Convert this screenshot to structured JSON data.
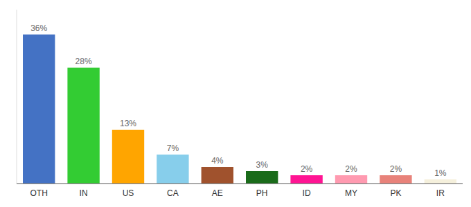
{
  "chart_data": {
    "type": "bar",
    "categories": [
      "OTH",
      "IN",
      "US",
      "CA",
      "AE",
      "PH",
      "ID",
      "MY",
      "PK",
      "IR"
    ],
    "values": [
      36,
      28,
      13,
      7,
      4,
      3,
      2,
      2,
      2,
      1
    ],
    "value_labels": [
      "36%",
      "28%",
      "13%",
      "7%",
      "4%",
      "3%",
      "2%",
      "2%",
      "2%",
      "1%"
    ],
    "data_labels": true,
    "colors": [
      "#4472c4",
      "#33cc33",
      "#ffa500",
      "#87ceeb",
      "#a0522d",
      "#1a6b1a",
      "#ff1493",
      "#ff9ab0",
      "#e8827a",
      "#f5f0dc"
    ],
    "ylim": [
      0,
      42
    ],
    "tick_labels": "x"
  }
}
